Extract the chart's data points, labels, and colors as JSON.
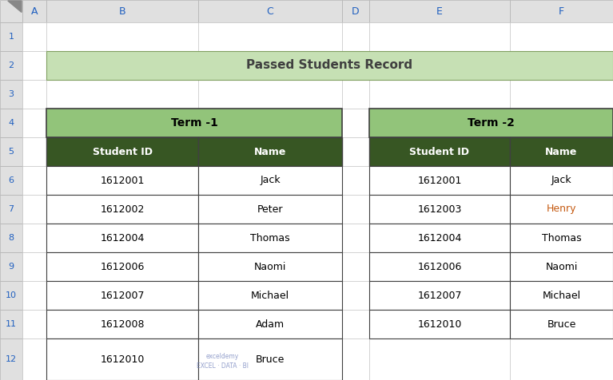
{
  "title": "Passed Students Record",
  "title_bg": "#c6e0b4",
  "title_text_color": "#404040",
  "term1_header": "Term -1",
  "term2_header": "Term -2",
  "term_header_bg": "#92c47a",
  "term_header_text_color": "#000000",
  "col_header_bg": "#375623",
  "col_header_text_color": "#ffffff",
  "col_headers": [
    "Student ID",
    "Name"
  ],
  "term1_data": [
    [
      "1612001",
      "Jack"
    ],
    [
      "1612002",
      "Peter"
    ],
    [
      "1612004",
      "Thomas"
    ],
    [
      "1612006",
      "Naomi"
    ],
    [
      "1612007",
      "Michael"
    ],
    [
      "1612008",
      "Adam"
    ],
    [
      "1612010",
      "Bruce"
    ]
  ],
  "term2_data": [
    [
      "1612001",
      "Jack"
    ],
    [
      "1612003",
      "Henry"
    ],
    [
      "1612004",
      "Thomas"
    ],
    [
      "1612006",
      "Naomi"
    ],
    [
      "1612007",
      "Michael"
    ],
    [
      "1612010",
      "Bruce"
    ]
  ],
  "term2_name_colors": [
    "#000000",
    "#c55a11",
    "#000000",
    "#000000",
    "#000000",
    "#000000"
  ],
  "bg_color": "#ffffff",
  "col_labels": [
    "A",
    "B",
    "C",
    "D",
    "E",
    "F"
  ],
  "row_labels": [
    "1",
    "2",
    "3",
    "4",
    "5",
    "6",
    "7",
    "8",
    "9",
    "10",
    "11",
    "12"
  ],
  "spreadsheet_header_bg": "#e0e0e0",
  "row_num_text_color": "#2060c0",
  "col_letter_text_color": "#2060c0",
  "cell_border_color": "#c0c0c0",
  "data_cell_bg": "#ffffff",
  "table_border_color": "#404040",
  "watermark_text": "exceldemy\nEXCEL · DATA · BI"
}
